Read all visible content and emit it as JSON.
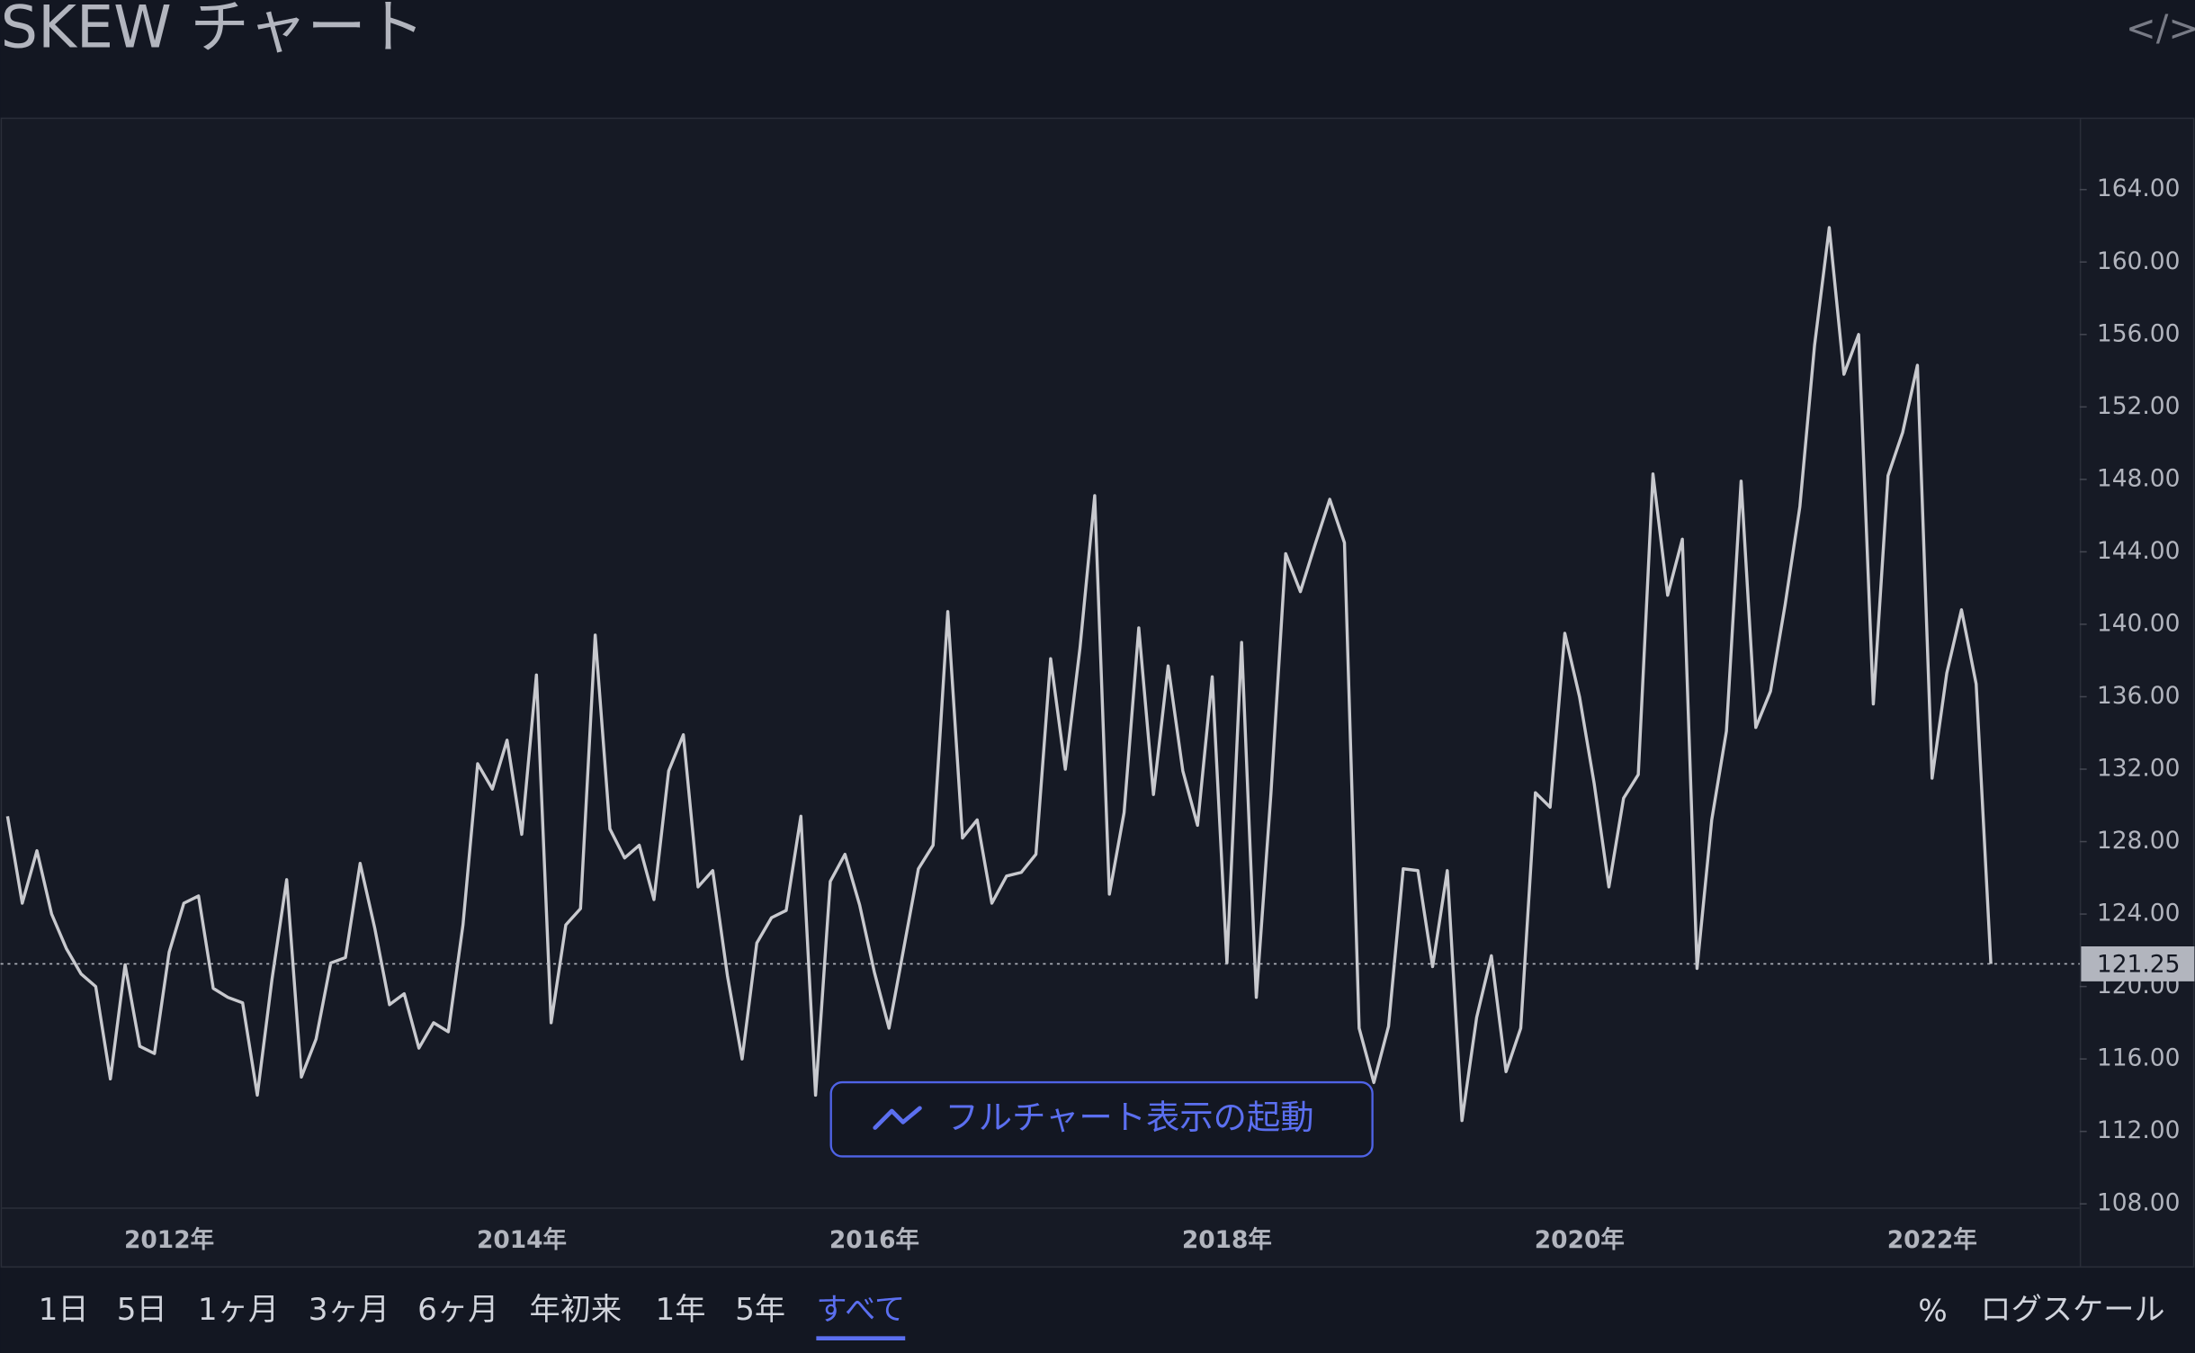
{
  "chart_data": {
    "type": "line",
    "title": "SKEW チャート",
    "categories": [
      null,
      null,
      null,
      null,
      null,
      null,
      null,
      null,
      null,
      null,
      null,
      "2012年",
      null,
      null,
      null,
      null,
      null,
      null,
      null,
      null,
      null,
      null,
      null,
      null,
      null,
      null,
      null,
      null,
      null,
      null,
      null,
      null,
      null,
      null,
      null,
      "2014年",
      null,
      null,
      null,
      null,
      null,
      null,
      null,
      null,
      null,
      null,
      null,
      null,
      null,
      null,
      null,
      null,
      null,
      null,
      null,
      null,
      null,
      null,
      null,
      "2016年",
      null,
      null,
      null,
      null,
      null,
      null,
      null,
      null,
      null,
      null,
      null,
      null,
      null,
      null,
      null,
      null,
      null,
      null,
      null,
      null,
      null,
      null,
      null,
      "2018年",
      null,
      null,
      null,
      null,
      null,
      null,
      null,
      null,
      null,
      null,
      null,
      null,
      null,
      null,
      null,
      null,
      null,
      null,
      null,
      null,
      null,
      null,
      null,
      "2020年",
      null,
      null,
      null,
      null,
      null,
      null,
      null,
      null,
      null,
      null,
      null,
      null,
      null,
      null,
      null,
      null,
      null,
      null,
      null,
      null,
      null,
      null,
      null,
      "2022年",
      null,
      null,
      null,
      null
    ],
    "values": [
      129.4,
      124.6,
      127.5,
      124.0,
      122.1,
      120.7,
      120.0,
      114.9,
      121.2,
      116.7,
      116.3,
      121.9,
      124.6,
      125.0,
      119.9,
      119.4,
      119.1,
      114.0,
      120.4,
      125.9,
      115.0,
      117.1,
      121.3,
      121.6,
      126.8,
      123.2,
      119.0,
      119.6,
      116.6,
      118.0,
      117.5,
      123.4,
      132.3,
      130.9,
      133.6,
      128.4,
      137.2,
      118.0,
      123.4,
      124.3,
      139.4,
      128.7,
      127.1,
      127.8,
      124.8,
      131.9,
      133.9,
      125.5,
      126.4,
      120.6,
      116.0,
      122.4,
      123.8,
      124.2,
      129.4,
      114.0,
      125.8,
      127.3,
      124.5,
      120.8,
      117.7,
      122.1,
      126.5,
      127.8,
      140.7,
      128.2,
      129.2,
      124.6,
      126.1,
      126.3,
      127.3,
      138.1,
      132.0,
      138.7,
      147.1,
      125.1,
      129.6,
      139.8,
      130.6,
      137.7,
      131.9,
      128.9,
      137.1,
      121.3,
      139.0,
      119.4,
      130.7,
      143.9,
      141.8,
      144.4,
      146.9,
      144.5,
      117.7,
      114.7,
      117.8,
      126.5,
      126.4,
      121.1,
      126.4,
      112.6,
      118.3,
      121.7,
      115.3,
      117.7,
      130.7,
      129.9,
      139.5,
      136.0,
      131.2,
      125.5,
      130.4,
      131.7,
      148.3,
      141.6,
      144.7,
      121.0,
      129.2,
      134.1,
      147.9,
      134.3,
      136.3,
      141.1,
      146.5,
      155.4,
      161.9,
      153.8,
      156.0,
      135.6,
      148.2,
      150.6,
      154.3,
      131.5,
      137.3,
      140.8,
      136.7,
      121.25
    ],
    "color": "#c8c9ce",
    "ylim": [
      107.8,
      167.9
    ],
    "yticks": [
      {
        "value": 108,
        "label": "108.00"
      },
      {
        "value": 112,
        "label": "112.00"
      },
      {
        "value": 116,
        "label": "116.00"
      },
      {
        "value": 120,
        "label": "120.00"
      },
      {
        "value": 124,
        "label": "124.00"
      },
      {
        "value": 128,
        "label": "128.00"
      },
      {
        "value": 132,
        "label": "132.00"
      },
      {
        "value": 136,
        "label": "136.00"
      },
      {
        "value": 140,
        "label": "140.00"
      },
      {
        "value": 144,
        "label": "144.00"
      },
      {
        "value": 148,
        "label": "148.00"
      },
      {
        "value": 152,
        "label": "152.00"
      },
      {
        "value": 156,
        "label": "156.00"
      },
      {
        "value": 160,
        "label": "160.00"
      },
      {
        "value": 164,
        "label": "164.00"
      }
    ],
    "grid": false
  },
  "ui": {
    "embed_icon": "</>",
    "launch_button": "フルチャート表示の起動",
    "ranges": [
      "1日",
      "5日",
      "1ヶ月",
      "3ヶ月",
      "6ヶ月",
      "年初来",
      "1年",
      "5年",
      "すべて"
    ],
    "active_range": 8,
    "percent": "%",
    "log_scale": "ログスケール"
  }
}
